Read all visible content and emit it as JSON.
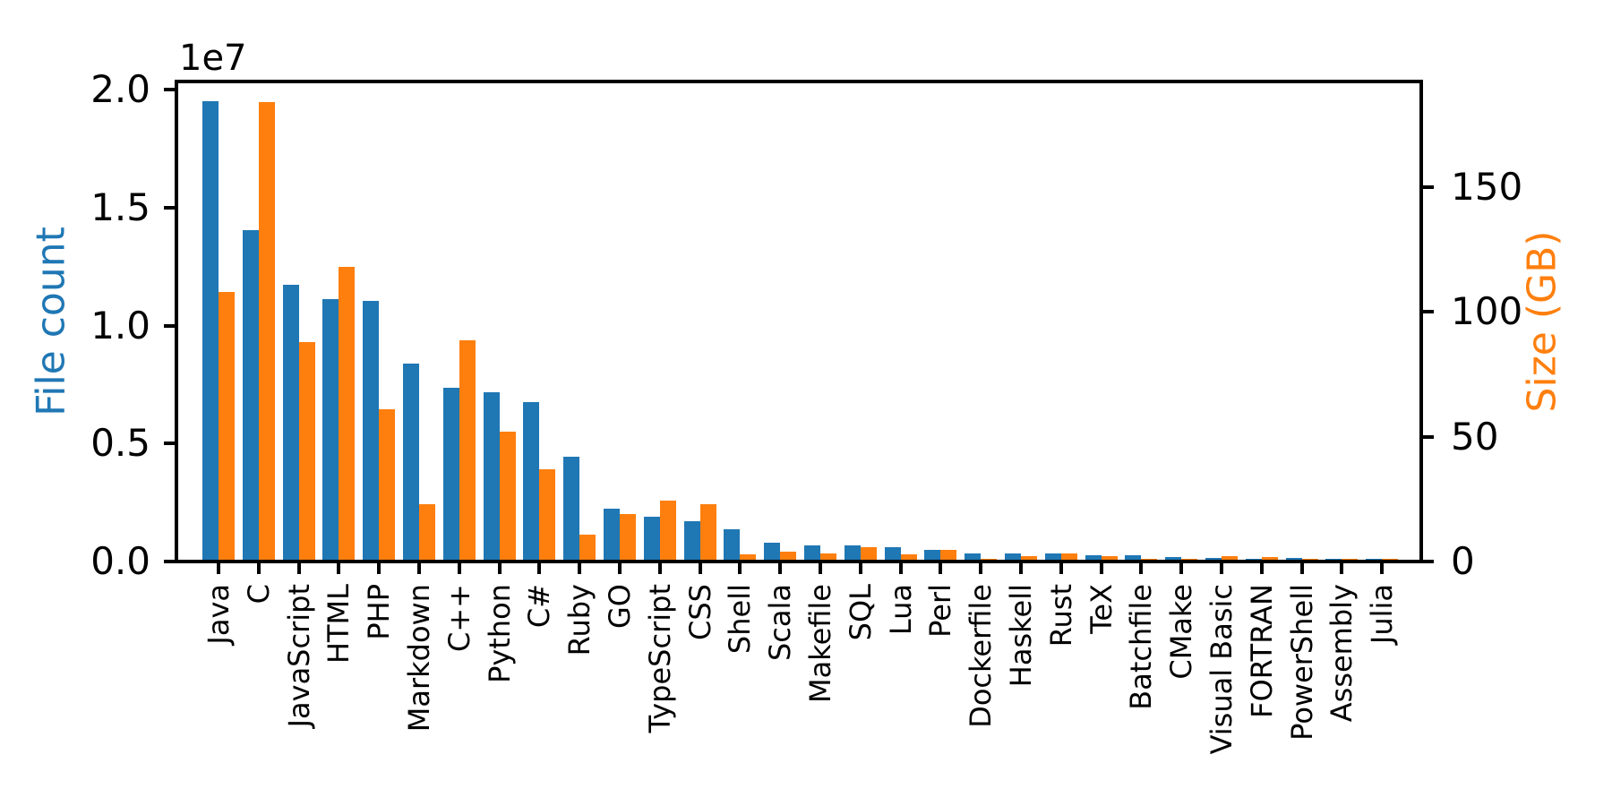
{
  "figure": {
    "background": "#ffffff"
  },
  "axes": {
    "left": {
      "label": "File count",
      "color": "#1f77b4",
      "offset_text": "1e7",
      "ticks": [
        {
          "label": "2.0",
          "value": 20000000
        },
        {
          "label": "1.5",
          "value": 15000000
        },
        {
          "label": "1.0",
          "value": 10000000
        },
        {
          "label": "0.5",
          "value": 5000000
        },
        {
          "label": "0.0",
          "value": 0
        }
      ]
    },
    "right": {
      "label": "Size (GB)",
      "color": "#ff7f0e",
      "ticks": [
        {
          "label": "150",
          "value": 150
        },
        {
          "label": "100",
          "value": 100
        },
        {
          "label": "50",
          "value": 50
        },
        {
          "label": "0",
          "value": 0
        }
      ]
    }
  },
  "chart_data": {
    "type": "bar",
    "title": "",
    "xlabel": "",
    "ylabel_left": "File count",
    "ylabel_right": "Size (GB)",
    "scale_note_left": "1e7",
    "ylim_left": [
      0,
      20350000
    ],
    "ylim_right": [
      0,
      192.3
    ],
    "grid": false,
    "legend": "none",
    "categories": [
      "Java",
      "C",
      "JavaScript",
      "HTML",
      "PHP",
      "Markdown",
      "C++",
      "Python",
      "C#",
      "Ruby",
      "GO",
      "TypeScript",
      "CSS",
      "Shell",
      "Scala",
      "Makefile",
      "SQL",
      "Lua",
      "Perl",
      "Dockerfile",
      "Haskell",
      "Rust",
      "TeX",
      "Batchfile",
      "CMake",
      "Visual Basic",
      "FORTRAN",
      "PowerShell",
      "Assembly",
      "Julia"
    ],
    "series": [
      {
        "name": "File count",
        "axis": "left",
        "color": "#1f77b4",
        "values": [
          19500000,
          14050000,
          11740000,
          11120000,
          11050000,
          8390000,
          7360000,
          7160000,
          6750000,
          4440000,
          2230000,
          1890000,
          1720000,
          1380000,
          800000,
          680000,
          690000,
          600000,
          500000,
          360000,
          350000,
          330000,
          270000,
          250000,
          190000,
          160000,
          110000,
          170000,
          90000,
          50000
        ]
      },
      {
        "name": "Size (GB)",
        "axis": "right",
        "color": "#ff7f0e",
        "values": [
          108,
          184,
          88,
          118,
          61,
          23,
          88.5,
          52,
          37,
          10.7,
          19,
          24.5,
          23,
          3,
          3.9,
          3.2,
          5.7,
          2.9,
          4.7,
          0.6,
          2.3,
          3.1,
          2.3,
          0.7,
          0.5,
          2.3,
          1.9,
          0.4,
          0.7,
          0.3
        ]
      }
    ]
  }
}
